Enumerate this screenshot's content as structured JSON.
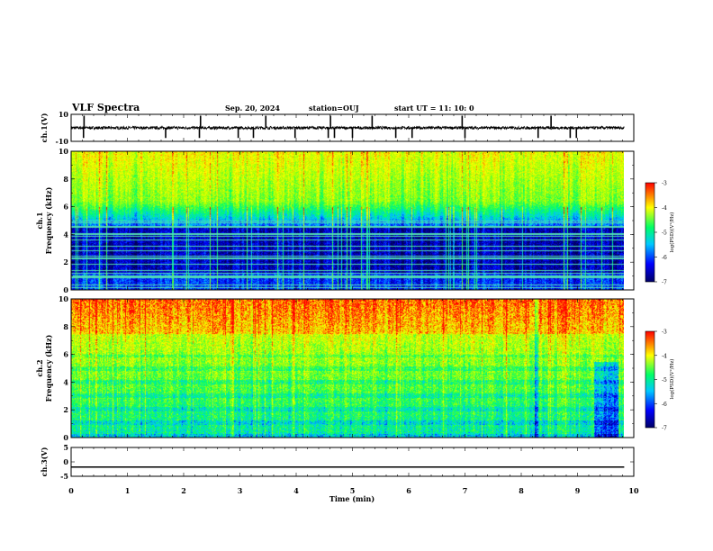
{
  "header": {
    "title": "VLF Spectra",
    "date": "Sep. 20, 2024",
    "station": "station=OUJ",
    "start": "start  UT =   11: 10: 0"
  },
  "chart_data": [
    {
      "type": "line",
      "name": "ch1-waveform",
      "ylabel": "ch.1(V)",
      "ylim": [
        -10,
        10
      ],
      "yticks": [
        "10",
        "-10"
      ],
      "baseline": 0,
      "spikes_min": [
        0.22,
        0.23,
        1.68,
        2.28,
        2.3,
        2.97,
        3.24,
        3.46,
        3.98,
        4.57,
        4.61,
        4.68,
        5.0,
        5.35,
        5.77,
        6.06,
        6.95,
        7.0,
        8.3,
        8.53,
        8.87,
        8.98
      ]
    },
    {
      "type": "heatmap",
      "name": "ch1-spectrogram",
      "ylabel_lines": [
        "ch.1",
        "Frequency (kHz)"
      ],
      "xlim": [
        0,
        10
      ],
      "ylim": [
        0,
        10
      ],
      "yticks": [
        "0",
        "2",
        "4",
        "6",
        "8",
        "10"
      ],
      "data_xmax_min": 9.83,
      "colorbar": {
        "label": "log(PSD)(V²/Hz)",
        "range": [
          -7,
          -3
        ],
        "ticks": [
          "-3",
          "-4",
          "-5",
          "-6",
          "-7"
        ]
      }
    },
    {
      "type": "heatmap",
      "name": "ch2-spectrogram",
      "ylabel_lines": [
        "ch.2",
        "Frequency (kHz)"
      ],
      "xlim": [
        0,
        10
      ],
      "ylim": [
        0,
        10
      ],
      "yticks": [
        "0",
        "2",
        "4",
        "6",
        "8",
        "10"
      ],
      "data_xmax_min": 9.83,
      "colorbar": {
        "label": "log(PSD)(V²/Hz)",
        "range": [
          -7,
          -3
        ],
        "ticks": [
          "-3",
          "-4",
          "-5",
          "-6",
          "-7"
        ]
      }
    },
    {
      "type": "line",
      "name": "ch3-waveform",
      "ylabel": "ch.3(V)",
      "ylim": [
        -5,
        5
      ],
      "yticks": [
        "5",
        "0",
        "-5"
      ],
      "values": [
        -1.8,
        -1.8
      ]
    }
  ],
  "x_axis": {
    "label": "Time (min)",
    "range": [
      0,
      10
    ],
    "ticks": [
      "0",
      "1",
      "2",
      "3",
      "4",
      "5",
      "6",
      "7",
      "8",
      "9",
      "10"
    ]
  },
  "colors": {
    "cmap": [
      "#000066",
      "#0000ff",
      "#00c8ff",
      "#00ff66",
      "#ffff00",
      "#ff0000"
    ]
  }
}
